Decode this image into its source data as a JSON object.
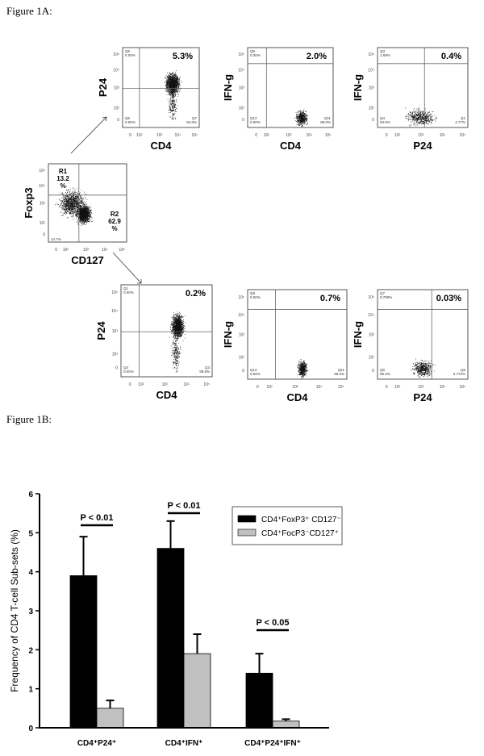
{
  "figure_1a": {
    "label": "Figure 1A:",
    "y_ticks": [
      "10⁵",
      "10⁴",
      "10³",
      "10²",
      "0"
    ],
    "x_ticks": [
      "0",
      "10²",
      "10³",
      "10⁴",
      "10⁵"
    ],
    "plots": [
      {
        "id": "top-cd4-p24",
        "xlabel": "CD4",
        "ylabel": "P24",
        "main": "5.3%",
        "ul": "Q5\n0.00%",
        "ll": "Q6\n0.00%",
        "lr": "Q7\n94.6%",
        "gate_x": 0.22,
        "gate_y": 0.49
      },
      {
        "id": "top-cd4-ifng",
        "xlabel": "CD4",
        "ylabel": "IFN-g",
        "main": "2.0%",
        "ul": "Q9\n0.00%",
        "ll": "Q12\n0.00%",
        "lr": "Q11\n98.0%",
        "gate_x": 0.22,
        "gate_y": 0.8
      },
      {
        "id": "top-p24-ifng",
        "xlabel": "P24",
        "ylabel": "IFN-g",
        "main": "0.4%",
        "ul": "Q3\n1.69%",
        "ll": "Q4\n93.9%",
        "lr": "Q1\n4.77%",
        "gate_x": 0.52,
        "gate_y": 0.8
      },
      {
        "id": "mid-cd127-foxp3",
        "xlabel": "CD127",
        "ylabel": "Foxp3",
        "r1": [
          "R1",
          "13.2",
          "%"
        ],
        "r2": [
          "R2",
          "62.9",
          "%"
        ],
        "ll": "14.7%",
        "gate_x": 0.39,
        "gate_y": 0.6
      },
      {
        "id": "bot-cd4-p24",
        "xlabel": "CD4",
        "ylabel": "P24",
        "main": "0.2%",
        "ul": "Q1\n0.00%",
        "ll": "Q4\n0.00%",
        "lr": "Q3\n99.8%",
        "gate_x": 0.2,
        "gate_y": 0.49
      },
      {
        "id": "bot-cd4-ifng",
        "xlabel": "CD4",
        "ylabel": "IFN-g",
        "main": "0.7%",
        "ul": "Q9\n0.00%",
        "ll": "Q12\n0.00%",
        "lr": "Q11\n99.3%",
        "gate_x": 0.28,
        "gate_y": 0.78
      },
      {
        "id": "bot-p24-ifng",
        "xlabel": "P24",
        "ylabel": "IFN-g",
        "main": "0.03%",
        "ul": "Q7\n0.790%",
        "ll": "Q8\n98.4%",
        "lr": "Q5\n0.772%",
        "gate_x": 0.6,
        "gate_y": 0.78
      }
    ]
  },
  "figure_1b": {
    "label": "Figure 1B:"
  },
  "chart_data": {
    "type": "bar",
    "ylabel": "Frequency of CD4 T-cell Sub-sets (%)",
    "xlabel": "",
    "ylim": [
      0,
      6
    ],
    "yticks": [
      "0",
      "1",
      "2",
      "3",
      "4",
      "5",
      "6"
    ],
    "categories": [
      "CD4⁺P24⁺",
      "CD4⁺IFN⁺",
      "CD4⁺P24⁺IFN⁺"
    ],
    "series": [
      {
        "name": "CD4⁺FoxP3⁺ CD127⁻",
        "color": "#000000",
        "values": [
          3.9,
          4.6,
          1.4
        ],
        "errors": [
          1.0,
          0.7,
          0.5
        ]
      },
      {
        "name": "CD4⁺FocP3⁻CD127⁺",
        "color": "#c0c0c0",
        "values": [
          0.5,
          1.9,
          0.17
        ],
        "errors": [
          0.2,
          0.5,
          0.05
        ]
      }
    ],
    "annotations": [
      "P < 0.01",
      "P < 0.01",
      "P < 0.05"
    ],
    "legend_position": "top-right",
    "grid": false
  }
}
